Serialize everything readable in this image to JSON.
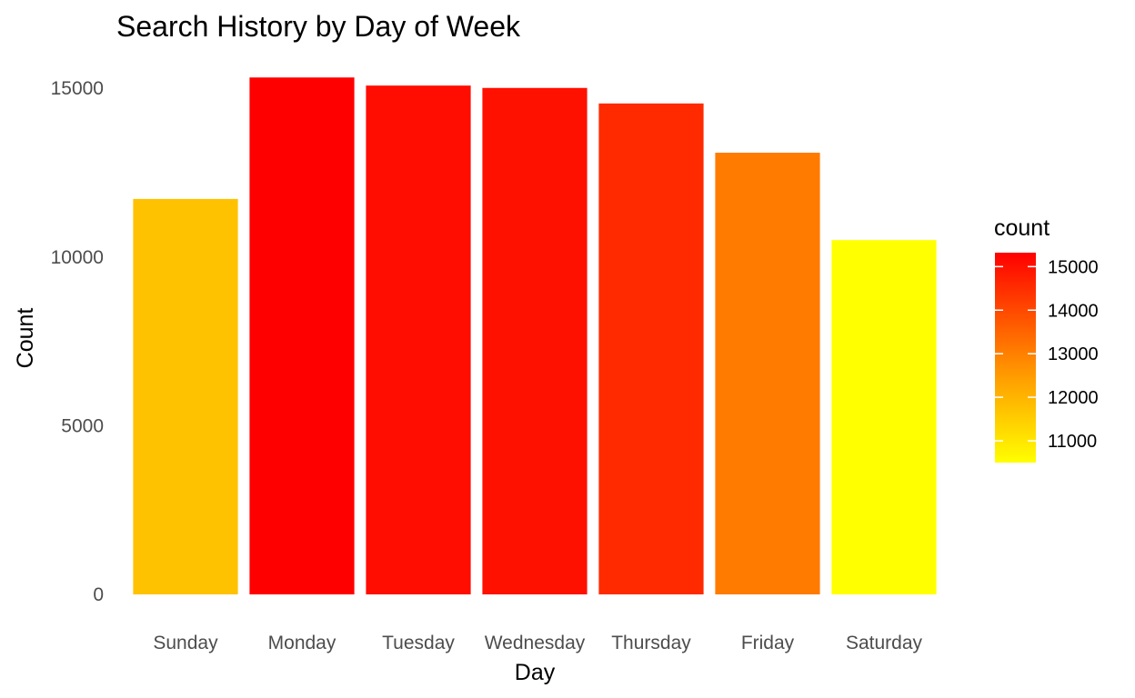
{
  "chart_data": {
    "type": "bar",
    "title": "Search History by Day of Week",
    "xlabel": "Day",
    "ylabel": "Count",
    "categories": [
      "Sunday",
      "Monday",
      "Tuesday",
      "Wednesday",
      "Thursday",
      "Friday",
      "Saturday"
    ],
    "values": [
      11720,
      15320,
      15080,
      15010,
      14550,
      13090,
      10500
    ],
    "ylim": [
      0,
      16000
    ],
    "yticks": [
      0,
      5000,
      10000,
      15000
    ],
    "grid": false,
    "legend": {
      "title": "count",
      "placement": "right",
      "range": [
        10500,
        15320
      ],
      "ticks": [
        11000,
        12000,
        13000,
        14000,
        15000
      ],
      "color_low": "#ffff00",
      "color_high": "#ff0000"
    }
  }
}
